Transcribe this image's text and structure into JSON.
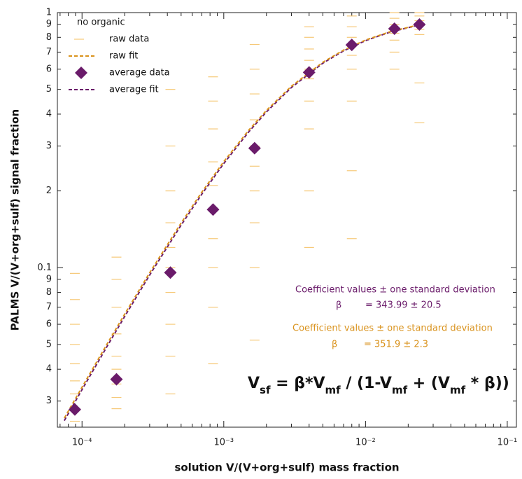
{
  "chart_data": {
    "type": "scatter",
    "xlabel": "solution V/(V+org+sulf) mass fraction",
    "ylabel": "PALMS V/(V+org+sulf) signal fraction",
    "xscale": "log",
    "yscale": "log",
    "xlim": [
      6.7e-05,
      0.116
    ],
    "ylim": [
      0.0237,
      1
    ],
    "xticks": [
      {
        "value": 0.0001,
        "label": "10⁻⁴"
      },
      {
        "value": 0.001,
        "label": "10⁻³"
      },
      {
        "value": 0.01,
        "label": "10⁻²"
      },
      {
        "value": 0.1,
        "label": "10⁻¹"
      }
    ],
    "xticks_minor": [
      7e-05,
      8e-05,
      9e-05,
      0.0002,
      0.0003,
      0.0004,
      0.0005,
      0.0006,
      0.0007,
      0.0008,
      0.0009,
      0.002,
      0.003,
      0.004,
      0.005,
      0.006,
      0.007,
      0.008,
      0.009,
      0.02,
      0.03,
      0.04,
      0.05,
      0.06,
      0.07,
      0.08,
      0.09
    ],
    "yticks": [
      1,
      {
        "value": 0.9,
        "label": "9"
      },
      {
        "value": 0.8,
        "label": "8"
      },
      {
        "value": 0.7,
        "label": "7"
      },
      {
        "value": 0.6,
        "label": "6"
      },
      {
        "value": 0.5,
        "label": "5"
      },
      {
        "value": 0.4,
        "label": "4"
      },
      {
        "value": 0.3,
        "label": "3"
      },
      {
        "value": 0.2,
        "label": "2"
      },
      0.1,
      {
        "value": 0.09,
        "label": "9"
      },
      {
        "value": 0.08,
        "label": "8"
      },
      {
        "value": 0.07,
        "label": "7"
      },
      {
        "value": 0.06,
        "label": "6"
      },
      {
        "value": 0.05,
        "label": "5"
      },
      {
        "value": 0.04,
        "label": "4"
      },
      {
        "value": 0.03,
        "label": "3"
      }
    ],
    "legend_title": "no organic",
    "legend": "upper left",
    "series": [
      {
        "name": "raw data",
        "style": "dash-marker",
        "color": "#f6c978",
        "x": [
          8.9e-05,
          8.9e-05,
          8.9e-05,
          8.9e-05,
          8.9e-05,
          8.9e-05,
          8.9e-05,
          8.9e-05,
          8.9e-05,
          0.000175,
          0.000175,
          0.000175,
          0.000175,
          0.000175,
          0.000175,
          0.000175,
          0.000175,
          0.000175,
          0.00042,
          0.00042,
          0.00042,
          0.00042,
          0.00042,
          0.00042,
          0.00042,
          0.00042,
          0.00042,
          0.00042,
          0.00084,
          0.00084,
          0.00084,
          0.00084,
          0.00084,
          0.00084,
          0.00084,
          0.00084,
          0.00084,
          0.00084,
          0.00165,
          0.00165,
          0.00165,
          0.00165,
          0.00165,
          0.00165,
          0.00165,
          0.00165,
          0.00165,
          0.00165,
          0.004,
          0.004,
          0.004,
          0.004,
          0.004,
          0.004,
          0.004,
          0.004,
          0.004,
          0.004,
          0.008,
          0.008,
          0.008,
          0.008,
          0.008,
          0.008,
          0.008,
          0.008,
          0.008,
          0.016,
          0.016,
          0.016,
          0.016,
          0.016,
          0.016,
          0.016,
          0.016,
          0.024,
          0.024,
          0.024,
          0.024,
          0.024,
          0.024,
          0.024,
          0.024
        ],
        "values": [
          0.025,
          0.028,
          0.032,
          0.036,
          0.042,
          0.05,
          0.06,
          0.075,
          0.095,
          0.028,
          0.031,
          0.035,
          0.04,
          0.045,
          0.055,
          0.07,
          0.09,
          0.11,
          0.032,
          0.045,
          0.06,
          0.08,
          0.1,
          0.12,
          0.15,
          0.2,
          0.3,
          0.5,
          0.042,
          0.07,
          0.1,
          0.13,
          0.17,
          0.21,
          0.26,
          0.35,
          0.45,
          0.56,
          0.052,
          0.1,
          0.15,
          0.2,
          0.25,
          0.3,
          0.38,
          0.48,
          0.6,
          0.75,
          0.12,
          0.2,
          0.35,
          0.45,
          0.55,
          0.6,
          0.65,
          0.72,
          0.8,
          0.88,
          0.13,
          0.24,
          0.45,
          0.6,
          0.68,
          0.74,
          0.8,
          0.88,
          0.97,
          0.6,
          0.7,
          0.78,
          0.83,
          0.87,
          0.9,
          0.95,
          1.0,
          0.37,
          0.53,
          0.82,
          0.86,
          0.9,
          0.93,
          0.97,
          1.0
        ]
      },
      {
        "name": "raw fit",
        "style": "dashed-line",
        "color": "#d9921c",
        "x": [
          7.5e-05,
          0.0001,
          0.00015,
          0.0002,
          0.0003,
          0.0005,
          0.0007,
          0.001,
          0.0015,
          0.002,
          0.003,
          0.005,
          0.007,
          0.01,
          0.015,
          0.024
        ],
        "values": [
          0.02572,
          0.03401,
          0.05016,
          0.06578,
          0.09554,
          0.1497,
          0.1978,
          0.2605,
          0.3459,
          0.4136,
          0.5144,
          0.6388,
          0.7128,
          0.7805,
          0.8428,
          0.8964
        ]
      },
      {
        "name": "average data",
        "style": "diamond",
        "color": "#6a1b6a",
        "x": [
          8.9e-05,
          0.000175,
          0.00042,
          0.00084,
          0.00165,
          0.004,
          0.008,
          0.016,
          0.024
        ],
        "values": [
          0.0278,
          0.0365,
          0.0957,
          0.169,
          0.294,
          0.583,
          0.747,
          0.865,
          0.898
        ]
      },
      {
        "name": "average fit",
        "style": "dashed-line",
        "color": "#6a1b6a",
        "x": [
          7.5e-05,
          0.0001,
          0.00015,
          0.0002,
          0.0003,
          0.0005,
          0.0007,
          0.001,
          0.0015,
          0.002,
          0.003,
          0.005,
          0.007,
          0.01,
          0.015,
          0.024
        ],
        "values": [
          0.02515,
          0.03326,
          0.04907,
          0.06438,
          0.09357,
          0.1468,
          0.1942,
          0.2561,
          0.3407,
          0.4081,
          0.5086,
          0.6335,
          0.708,
          0.7765,
          0.8397,
          0.8943
        ]
      }
    ],
    "annotations": [
      {
        "text": "Coefficient values ± one standard deviation",
        "color": "#6a1b6a"
      },
      {
        "text": "β",
        "color": "#6a1b6a"
      },
      {
        "text": "= 343.99 ± 20.5",
        "color": "#6a1b6a"
      },
      {
        "text": "Coefficient values ± one standard deviation",
        "color": "#d9921c"
      },
      {
        "text": "β",
        "color": "#d9921c"
      },
      {
        "text": "= 351.9 ± 2.3",
        "color": "#d9921c"
      }
    ],
    "formula": [
      {
        "text": "V"
      },
      {
        "text": "sf",
        "sub": true
      },
      {
        "text": " = β*V"
      },
      {
        "text": "mf",
        "sub": true
      },
      {
        "text": " / (1-V"
      },
      {
        "text": "mf",
        "sub": true
      },
      {
        "text": " + (V"
      },
      {
        "text": "mf",
        "sub": true
      },
      {
        "text": " * β))"
      }
    ]
  }
}
